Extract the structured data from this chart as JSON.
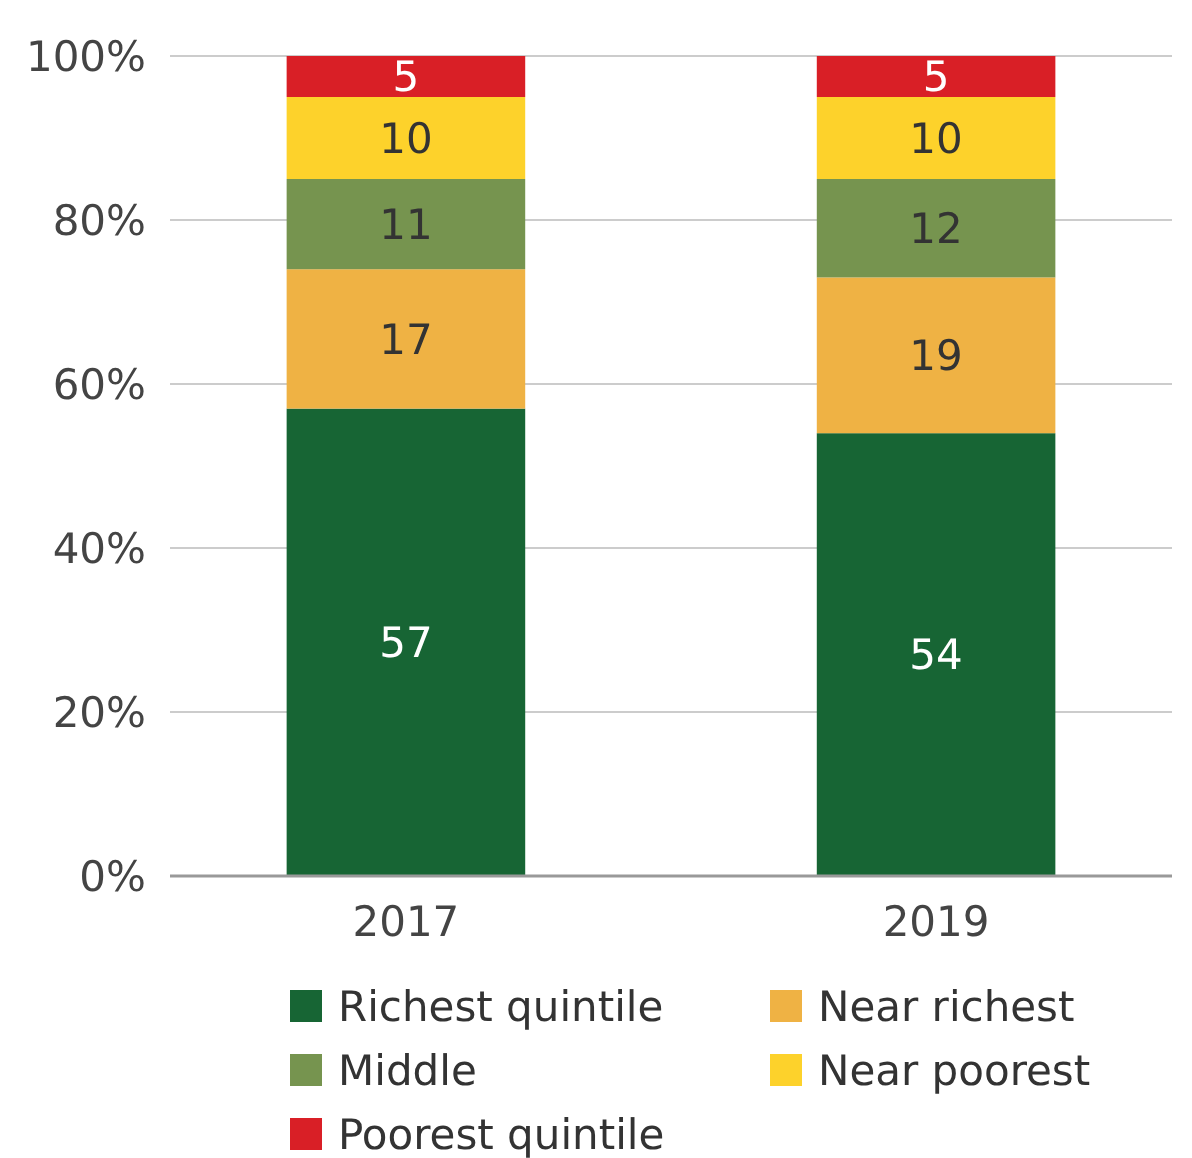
{
  "chart_data": {
    "type": "bar",
    "stacked": true,
    "data_labels": true,
    "categories": [
      "2017",
      "2019"
    ],
    "series": [
      {
        "name": "Richest quintile",
        "color": "#176534",
        "values": [
          57,
          54
        ]
      },
      {
        "name": "Near richest",
        "color": "#efb244",
        "values": [
          17,
          19
        ]
      },
      {
        "name": "Middle",
        "color": "#76944f",
        "values": [
          11,
          12
        ]
      },
      {
        "name": "Near poorest",
        "color": "#fdd22b",
        "values": [
          10,
          10
        ]
      },
      {
        "name": "Poorest quintile",
        "color": "#d91f26",
        "values": [
          5,
          5
        ]
      }
    ],
    "ylim": [
      0,
      100
    ],
    "yticks": [
      {
        "value": 0,
        "label": "0%"
      },
      {
        "value": 20,
        "label": "20%"
      },
      {
        "value": 40,
        "label": "40%"
      },
      {
        "value": 60,
        "label": "60%"
      },
      {
        "value": 80,
        "label": "80%"
      },
      {
        "value": 100,
        "label": "100%"
      }
    ],
    "grid": "y",
    "legend": "bottom"
  }
}
